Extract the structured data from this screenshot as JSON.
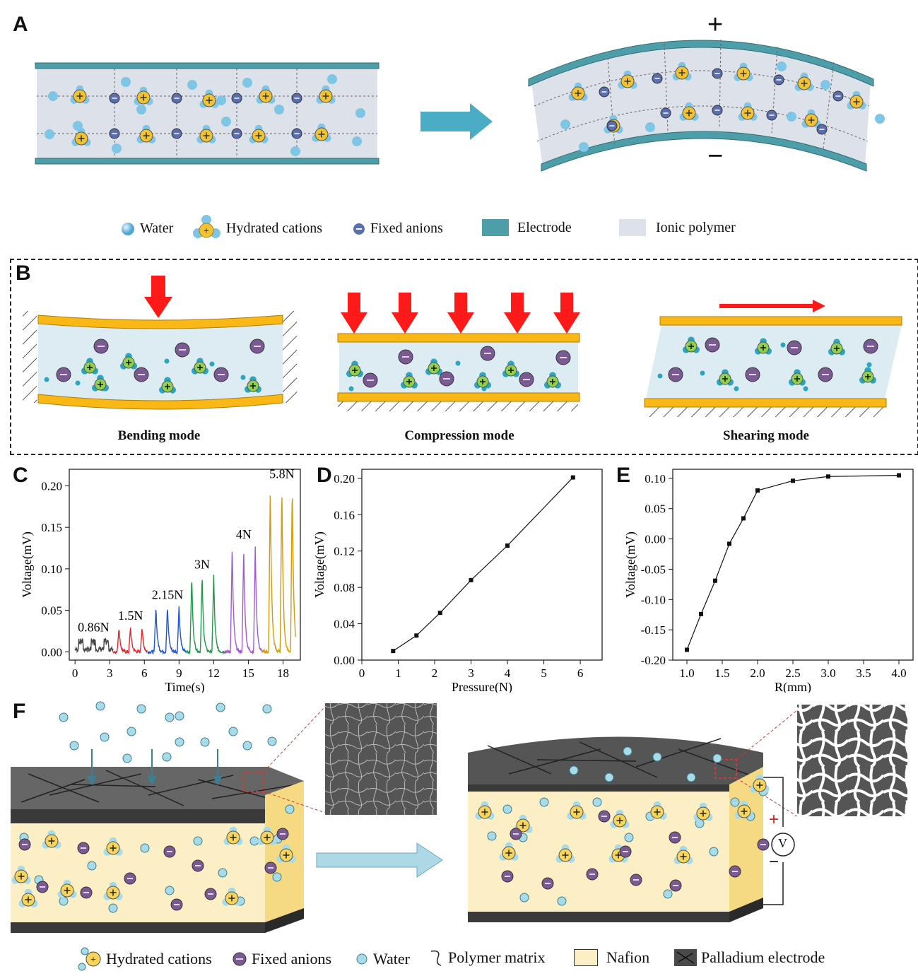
{
  "panel_labels": {
    "a": "A",
    "b": "B",
    "c": "C",
    "d": "D",
    "e": "E",
    "f": "F"
  },
  "panel_a": {
    "plus_sign": "+",
    "minus_sign": "−",
    "legend": {
      "water": "Water",
      "hydrated_cations": "Hydrated cations",
      "fixed_anions": "Fixed anions",
      "electrode": "Electrode",
      "ionic_polymer": "Ionic polymer"
    },
    "colors": {
      "electrode": "#4d9ea8",
      "polymer": "#dde1ea",
      "water": "#7fc6e6",
      "cation": "#f1c232",
      "anion": "#5a6fb0"
    }
  },
  "panel_b": {
    "captions": {
      "bending": "Bending mode",
      "compression": "Compression mode",
      "shearing": "Shearing mode"
    },
    "colors": {
      "electrode": "#f9b816",
      "polymer": "#dcecf2",
      "arrow": "#ff1a1a",
      "anion": "#7b5a94",
      "cation": "#8fd14f"
    }
  },
  "chart_c": {
    "type": "line",
    "xlabel": "Time(s)",
    "ylabel": "Voltage(mV)",
    "xlim": [
      -0.5,
      19.5
    ],
    "ylim": [
      -0.01,
      0.22
    ],
    "xticks": [
      "0",
      "3",
      "6",
      "9",
      "12",
      "15",
      "18"
    ],
    "yticks": [
      "0.00",
      "0.05",
      "0.10",
      "0.15",
      "0.20"
    ],
    "series": [
      {
        "name": "0.86N",
        "color": "#444444",
        "x_range": [
          0,
          3.3
        ],
        "peaks": [
          0.5,
          1.6,
          2.7
        ],
        "amplitude": 0.016
      },
      {
        "name": "1.5N",
        "color": "#e8262a",
        "x_range": [
          3.3,
          6.3
        ],
        "peaks": [
          3.8,
          4.8,
          5.8
        ],
        "amplitude": 0.03
      },
      {
        "name": "2.15N",
        "color": "#1f55d6",
        "x_range": [
          6.3,
          9.6
        ],
        "peaks": [
          7.0,
          8.0,
          9.0
        ],
        "amplitude": 0.055
      },
      {
        "name": "3N",
        "color": "#1e9a4a",
        "x_range": [
          9.6,
          12.9
        ],
        "peaks": [
          10.1,
          11.0,
          12.0
        ],
        "amplitude": 0.092
      },
      {
        "name": "4N",
        "color": "#a35ad6",
        "x_range": [
          12.9,
          16.2
        ],
        "peaks": [
          13.6,
          14.6,
          15.6
        ],
        "amplitude": 0.128
      },
      {
        "name": "5.8N",
        "color": "#d49a0a",
        "x_range": [
          16.2,
          19.1
        ],
        "peaks": [
          16.9,
          17.9,
          18.8
        ],
        "amplitude": 0.201
      }
    ]
  },
  "chart_d": {
    "type": "line",
    "xlabel": "Pressure(N)",
    "ylabel": "Voltage(mV)",
    "xlim": [
      0,
      6.6
    ],
    "ylim": [
      0,
      0.21
    ],
    "xticks": [
      "0",
      "1",
      "2",
      "3",
      "4",
      "5",
      "6"
    ],
    "yticks": [
      "0.00",
      "0.04",
      "0.08",
      "0.12",
      "0.16",
      "0.20"
    ],
    "x": [
      0.86,
      1.5,
      2.15,
      3,
      4,
      5.8
    ],
    "y": [
      0.01,
      0.027,
      0.052,
      0.088,
      0.126,
      0.201
    ]
  },
  "chart_e": {
    "type": "line",
    "xlabel": "R(mm)",
    "ylabel": "Voltage(mV)",
    "xlim": [
      0.8,
      4.2
    ],
    "ylim": [
      -0.2,
      0.115
    ],
    "xticks": [
      "1.0",
      "1.5",
      "2.0",
      "2.5",
      "3.0",
      "3.5",
      "4.0"
    ],
    "yticks": [
      "0.10",
      "0.05",
      "0.00",
      "-0.05",
      "-0.10",
      "-0.15",
      "-0.20"
    ],
    "x": [
      1.0,
      1.2,
      1.4,
      1.6,
      1.8,
      2.0,
      2.5,
      3.0,
      4.0
    ],
    "y": [
      -0.183,
      -0.124,
      -0.069,
      -0.008,
      0.034,
      0.08,
      0.096,
      0.103,
      0.105
    ]
  },
  "panel_f": {
    "plus_sign": "+",
    "minus_sign": "−",
    "voltmeter": "V",
    "legend": {
      "hydrated_cations": "Hydrated cations",
      "fixed_anions": "Fixed anions",
      "water": "Water",
      "polymer_matrix": "Polymer matrix",
      "nafion": "Nafion",
      "palladium_electrode": "Palladium electrode"
    },
    "colors": {
      "nafion": "#fcefc6",
      "electrode": "#4a4a4a",
      "cation": "#f7d45c",
      "anion": "#7b5a94",
      "water": "#a8dbe8",
      "arrow": "#add8e6"
    }
  }
}
